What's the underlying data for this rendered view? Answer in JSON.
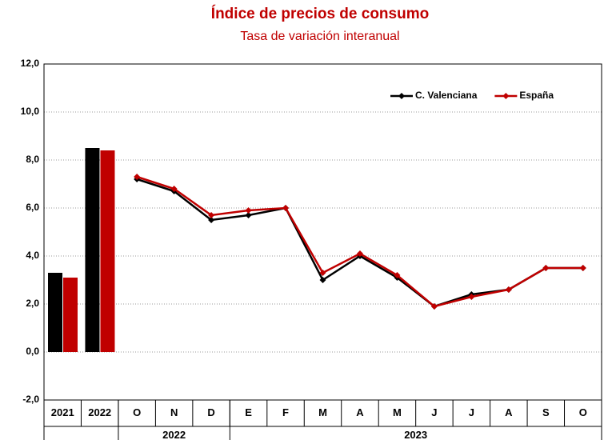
{
  "chart_data": {
    "type": "combo",
    "title": "Índice de precios de consumo",
    "subtitle": "Tasa de variación interanual",
    "bar_categories": [
      "2021",
      "2022"
    ],
    "groups": [
      {
        "label": "2022",
        "categories": [
          "O",
          "N",
          "D"
        ]
      },
      {
        "label": "2023",
        "categories": [
          "E",
          "F",
          "M",
          "A",
          "M",
          "J",
          "J",
          "A",
          "S",
          "O"
        ]
      }
    ],
    "series": [
      {
        "name": "C. Valenciana",
        "color": "#000000",
        "bar_values": [
          3.3,
          8.5
        ],
        "values": [
          7.2,
          6.7,
          5.5,
          5.7,
          6.0,
          3.0,
          4.0,
          3.1,
          1.9,
          2.4,
          2.6,
          3.5,
          3.5
        ]
      },
      {
        "name": "España",
        "color": "#c00000",
        "bar_values": [
          3.1,
          8.4
        ],
        "values": [
          7.3,
          6.8,
          5.7,
          5.9,
          6.0,
          3.3,
          4.1,
          3.2,
          1.9,
          2.3,
          2.6,
          3.5,
          3.5
        ]
      }
    ],
    "ylim": [
      -2,
      12
    ],
    "yticks": [
      {
        "value": -2,
        "label": "-2,0"
      },
      {
        "value": 0,
        "label": "0,0"
      },
      {
        "value": 2,
        "label": "2,0"
      },
      {
        "value": 4,
        "label": "4,0"
      },
      {
        "value": 6,
        "label": "6,0"
      },
      {
        "value": 8,
        "label": "8,0"
      },
      {
        "value": 10,
        "label": "10,0"
      },
      {
        "value": 12,
        "label": "12,0"
      }
    ],
    "grid": true,
    "legend": "top-right"
  }
}
